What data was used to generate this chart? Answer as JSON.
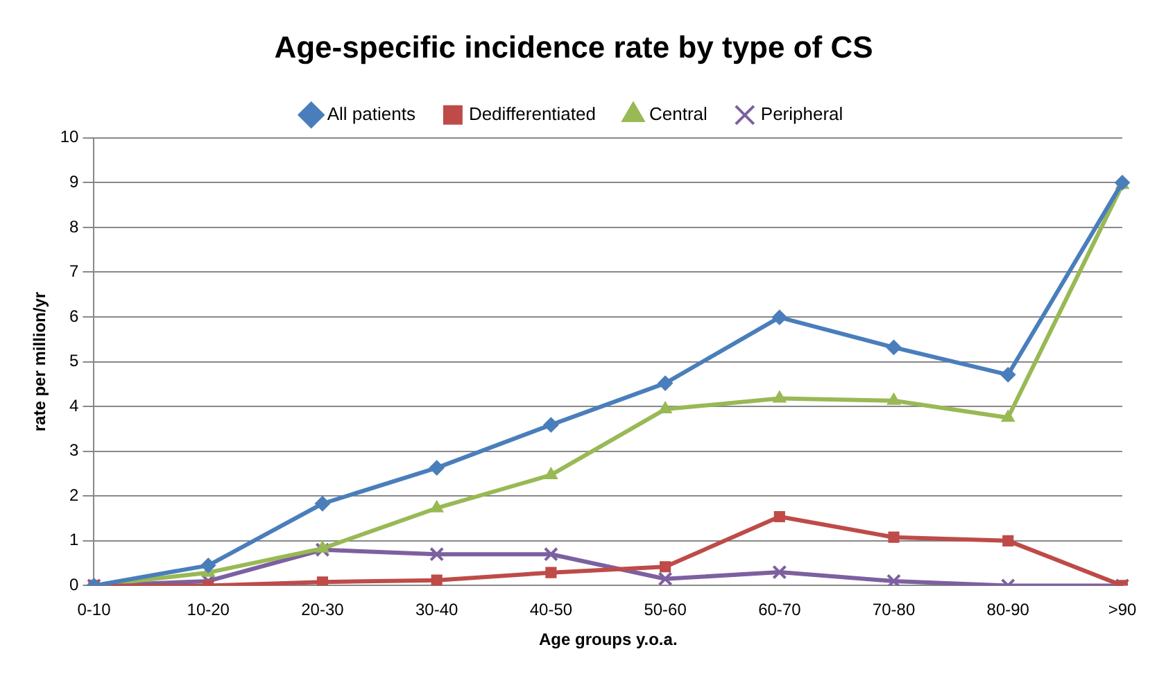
{
  "chart_data": {
    "type": "line",
    "title": "Age-specific incidence rate by type of CS",
    "xlabel": "Age groups y.o.a.",
    "ylabel": "rate per million/yr",
    "categories": [
      "0-10",
      "10-20",
      "20-30",
      "30-40",
      "40-50",
      "50-60",
      "60-70",
      "70-80",
      "80-90",
      ">90"
    ],
    "series": [
      {
        "name": "All patients",
        "color": "#4a7ebb",
        "marker": "diamond",
        "values": [
          0,
          0.45,
          1.83,
          2.63,
          3.59,
          4.52,
          5.99,
          5.32,
          4.71,
          9.0
        ]
      },
      {
        "name": "Dedifferentiated",
        "color": "#be4b48",
        "marker": "square",
        "values": [
          0,
          0,
          0.08,
          0.12,
          0.29,
          0.42,
          1.54,
          1.08,
          1.0,
          0
        ]
      },
      {
        "name": "Central",
        "color": "#98b954",
        "marker": "triangle",
        "values": [
          0,
          0.29,
          0.83,
          1.73,
          2.47,
          3.94,
          4.18,
          4.13,
          3.75,
          8.95
        ]
      },
      {
        "name": "Peripheral",
        "color": "#7d60a0",
        "marker": "cross",
        "values": [
          0,
          0.1,
          0.8,
          0.7,
          0.7,
          0.15,
          0.3,
          0.1,
          0,
          0
        ]
      }
    ],
    "ylim": [
      0,
      10
    ],
    "yticks": [
      0,
      1,
      2,
      3,
      4,
      5,
      6,
      7,
      8,
      9,
      10
    ],
    "grid": "y",
    "legend": "top"
  }
}
